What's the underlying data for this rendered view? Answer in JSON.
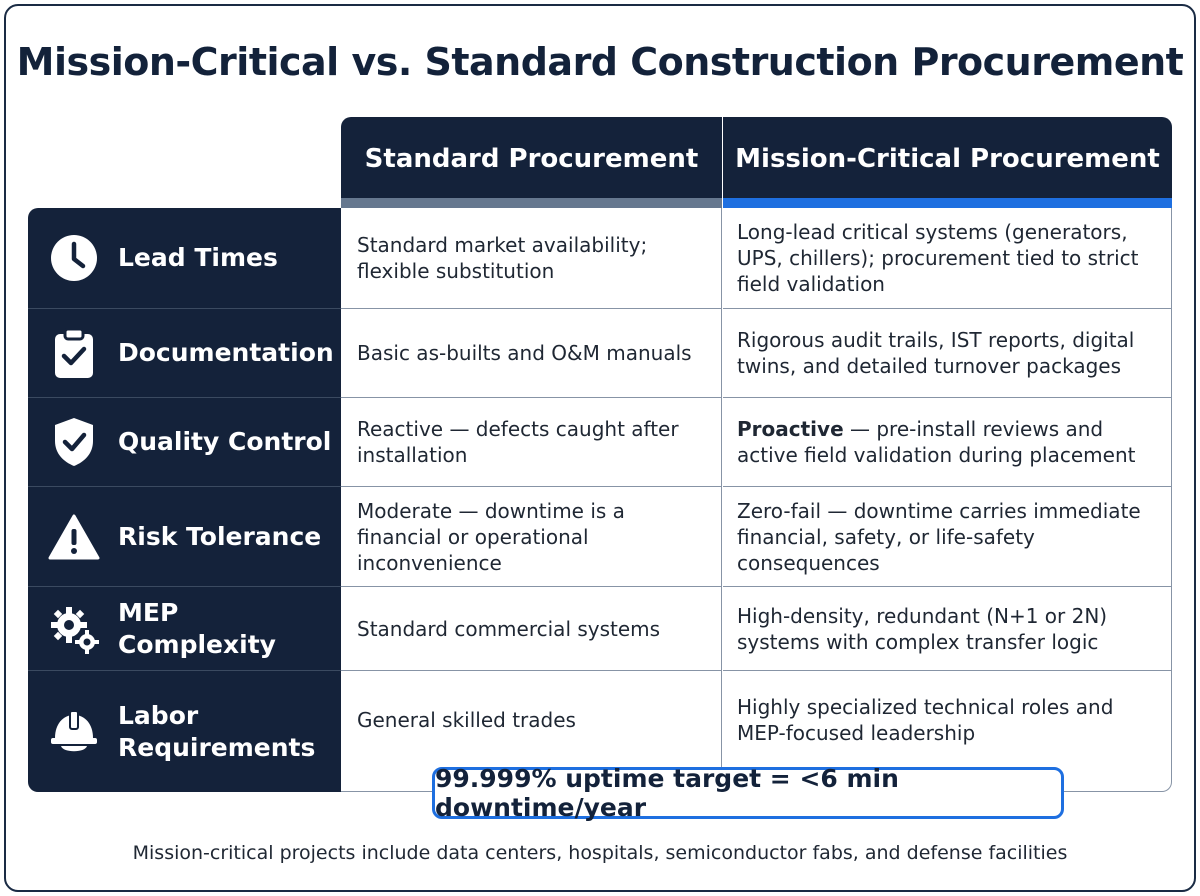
{
  "title": "Mission-Critical vs. Standard Construction Procurement",
  "columns": {
    "standard": "Standard Procurement",
    "mission_critical": "Mission-Critical Procurement"
  },
  "rows": [
    {
      "label": "Lead Times",
      "icon": "clock-icon",
      "standard": "Standard market availability; flexible substitution",
      "mission_critical": "Long-lead critical systems (generators, UPS, chillers); procurement tied to strict field validation"
    },
    {
      "label": "Documentation",
      "icon": "clipboard-check-icon",
      "standard": "Basic as-builts and O&M manuals",
      "mission_critical": "Rigorous audit trails, IST reports, digital twins, and detailed turnover packages"
    },
    {
      "label": "Quality Control",
      "icon": "shield-check-icon",
      "standard": "Reactive — defects caught after installation",
      "mission_critical_bold": "Proactive",
      "mission_critical": " — pre-install reviews and active field validation during placement"
    },
    {
      "label": "Risk Tolerance",
      "icon": "warning-triangle-icon",
      "standard": "Moderate — downtime is a financial or operational inconvenience",
      "mission_critical": "Zero-fail — downtime carries immediate financial, safety, or life-safety consequences"
    },
    {
      "label": "MEP Complexity",
      "icon": "gears-icon",
      "standard": "Standard commercial systems",
      "mission_critical": "High-density, redundant (N+1 or 2N) systems with complex transfer logic"
    },
    {
      "label": "Labor Requirements",
      "icon": "hard-hat-icon",
      "standard": "General skilled trades",
      "mission_critical": "Highly specialized technical roles and MEP-focused leadership"
    }
  ],
  "callout": "99.999% uptime target = <6 min downtime/year",
  "footnote": "Mission-critical projects include data centers, hospitals, semiconductor fabs, and defense facilities",
  "colors": {
    "navy": "#14223a",
    "accent_blue": "#1e6fe0",
    "standard_bar": "#66788f"
  }
}
